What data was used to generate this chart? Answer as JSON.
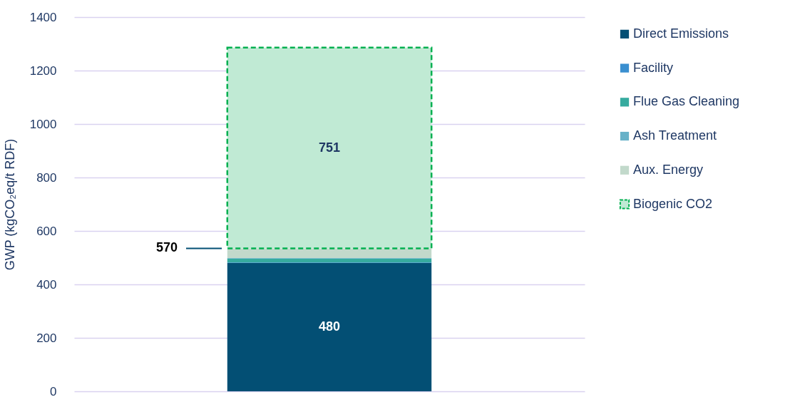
{
  "chart_data": {
    "type": "bar",
    "stacked": true,
    "ylabel": "GWP (kgCO₂eq/t RDF)",
    "categories": [
      null
    ],
    "series": [
      {
        "name": "Direct Emissions",
        "color": "#034f74",
        "values": [
          480
        ],
        "value_labels": [
          "480"
        ]
      },
      {
        "name": "Facility",
        "color": "#3a8fd0",
        "values": [
          2
        ]
      },
      {
        "name": "Flue Gas Cleaning",
        "color": "#36ab9f",
        "values": [
          15
        ]
      },
      {
        "name": "Ash Treatment",
        "color": "#67b1c8",
        "values": [
          2
        ]
      },
      {
        "name": "Aux. Energy",
        "color": "#c2d9cb",
        "values": [
          36
        ]
      },
      {
        "name": "Biogenic CO2",
        "color": "#c0ead4",
        "values": [
          751
        ],
        "value_labels": [
          "751"
        ],
        "line_style": "dashed"
      }
    ],
    "annotations": [
      "570"
    ],
    "ylim": [
      0,
      1400
    ],
    "yticks": [
      0,
      200,
      400,
      600,
      800,
      1000,
      1200,
      1400
    ],
    "grid": "y",
    "legend": "top right",
    "tick_labels": "y"
  }
}
